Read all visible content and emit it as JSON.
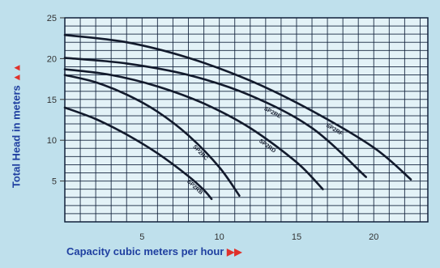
{
  "chart_data": {
    "type": "line",
    "xlabel": "Capacity cubic meters per hour",
    "ylabel": "Total Head in meters",
    "xlim": [
      0,
      23.5
    ],
    "ylim": [
      0,
      25
    ],
    "x_ticks": [
      "5",
      "10",
      "15",
      "20"
    ],
    "x_tick_values": [
      5,
      10,
      15,
      20
    ],
    "y_ticks": [
      "5",
      "10",
      "15",
      "20",
      "25"
    ],
    "y_tick_values": [
      5,
      10,
      15,
      20,
      25
    ],
    "grid": true,
    "series": [
      {
        "name": "SP2RB",
        "x": [
          0,
          2,
          4,
          6,
          8,
          9,
          9.5
        ],
        "y": [
          14.0,
          12.6,
          10.7,
          8.4,
          5.6,
          3.9,
          2.8
        ]
      },
      {
        "name": "SP2RC",
        "x": [
          0,
          2,
          4,
          6,
          8,
          10,
          11.3
        ],
        "y": [
          18.0,
          17.1,
          15.6,
          13.5,
          10.6,
          6.7,
          3.2
        ]
      },
      {
        "name": "SP2RD",
        "x": [
          0,
          3,
          6,
          9,
          12,
          15,
          16.7
        ],
        "y": [
          18.7,
          18.0,
          16.6,
          14.5,
          11.5,
          7.3,
          4.0
        ]
      },
      {
        "name": "SP2RE",
        "x": [
          0,
          4,
          8,
          12,
          16,
          19.5
        ],
        "y": [
          20.1,
          19.4,
          18.0,
          15.5,
          11.5,
          5.5
        ]
      },
      {
        "name": "SP2RF",
        "x": [
          0,
          4,
          8,
          12,
          16,
          20,
          22.4
        ],
        "y": [
          22.9,
          22.0,
          20.1,
          17.3,
          13.6,
          9.1,
          5.2
        ]
      }
    ],
    "line_color": "#121a2c",
    "grid_color": "#10203a",
    "plot_background": "#e3f2f7"
  },
  "arrows": {
    "y": "▲▲",
    "x": "▶▶"
  },
  "colors": {
    "label": "#1f3fa0",
    "arrow": "#e0312a"
  }
}
